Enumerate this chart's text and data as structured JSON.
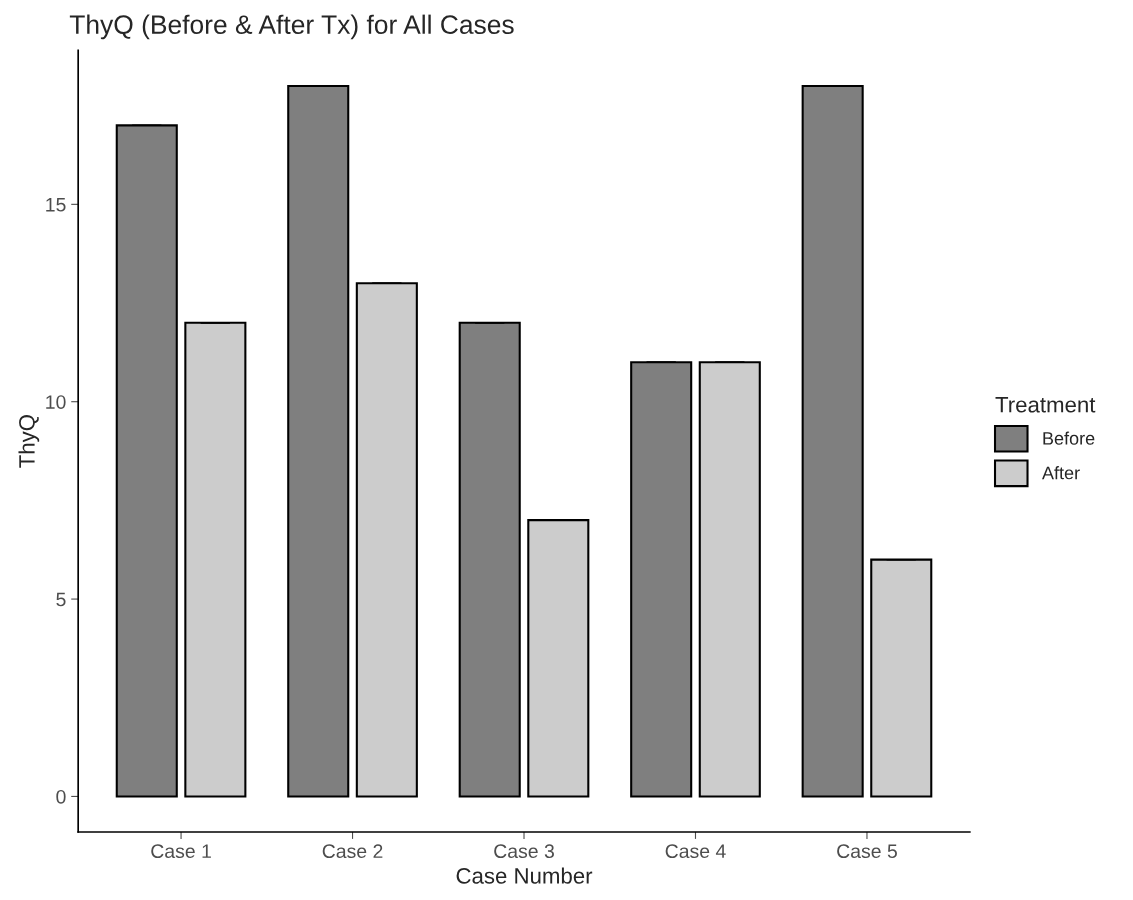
{
  "chart_data": {
    "type": "bar",
    "title": "ThyQ (Before & After Tx) for All Cases",
    "xlabel": "Case Number",
    "ylabel": "ThyQ",
    "legend_title": "Treatment",
    "categories": [
      "Case 1",
      "Case 2",
      "Case 3",
      "Case 4",
      "Case 5"
    ],
    "series": [
      {
        "name": "Before",
        "color": "#7f7f7f",
        "values": [
          17,
          18,
          12,
          11,
          18
        ],
        "errors": [
          0,
          0,
          0,
          0,
          0
        ]
      },
      {
        "name": "After",
        "color": "#cccccc",
        "values": [
          12,
          13,
          7,
          11,
          6
        ],
        "errors": [
          0,
          0,
          0,
          0,
          0
        ]
      }
    ],
    "ylim": [
      -0.9,
      18.9
    ],
    "yticks": [
      0,
      5,
      10,
      15
    ],
    "grid": false,
    "legend": "right"
  }
}
